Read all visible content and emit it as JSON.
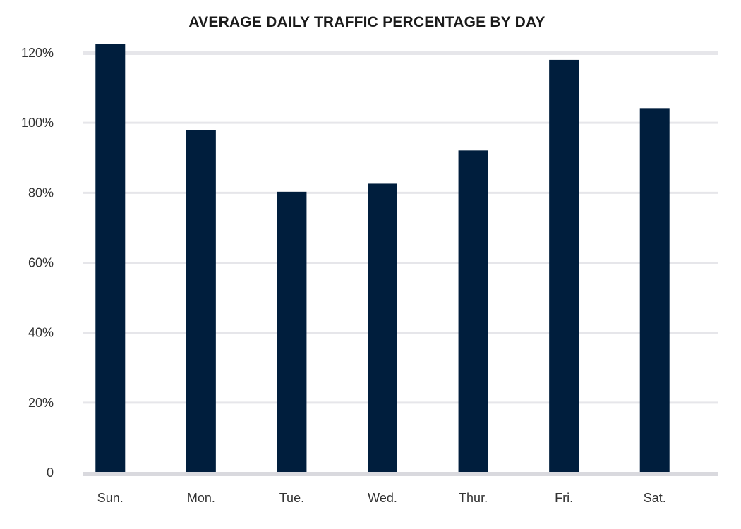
{
  "chart_data": {
    "type": "bar",
    "title": "AVERAGE DAILY TRAFFIC PERCENTAGE BY DAY",
    "categories": [
      "Sun.",
      "Mon.",
      "Tue.",
      "Wed.",
      "Thur.",
      "Fri.",
      "Sat."
    ],
    "values": [
      122.5,
      98,
      80.3,
      82.6,
      92.1,
      118,
      104.2
    ],
    "ylim": [
      0,
      120
    ],
    "y_ticks": [
      0,
      20,
      40,
      60,
      80,
      100,
      120
    ],
    "y_tick_labels": [
      "0",
      "20%",
      "40%",
      "60%",
      "80%",
      "100%",
      "120%"
    ],
    "xlabel": "",
    "ylabel": "",
    "grid": true,
    "legend": "none",
    "colors": {
      "bar": "#001e3d",
      "grid": "#e6e6ea",
      "baseline": "#d9d9de",
      "text": "#333333"
    }
  }
}
